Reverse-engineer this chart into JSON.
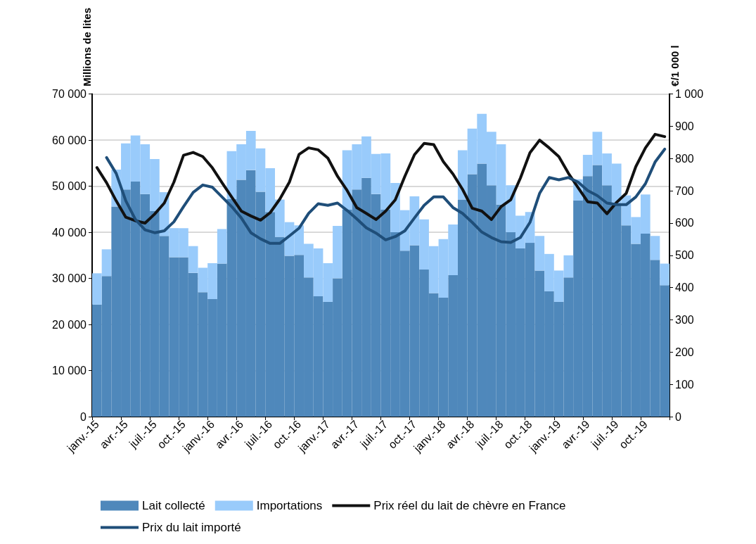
{
  "chart_data": {
    "type": "bar",
    "stacked": true,
    "categories": [
      "janv.-15",
      null,
      null,
      "avr.-15",
      null,
      null,
      "juil.-15",
      null,
      null,
      "oct.-15",
      null,
      null,
      "janv.-16",
      null,
      null,
      "avr.-16",
      null,
      null,
      "juil.-16",
      null,
      null,
      "oct.-16",
      null,
      null,
      "janv.-17",
      null,
      null,
      "avr.-17",
      null,
      null,
      "juil.-17",
      null,
      null,
      "oct.-17",
      null,
      null,
      "janv.-18",
      null,
      null,
      "avr.-18",
      null,
      null,
      "juil.-18",
      null,
      null,
      "oct.-18",
      null,
      null,
      "janv.-19",
      null,
      null,
      "avr.-19",
      null,
      null,
      "juil.-19",
      null,
      null,
      "oct.-19",
      null,
      null
    ],
    "ylabel": "Millions de lites",
    "y2label": "€/1 000 l",
    "ylim": [
      0,
      70000
    ],
    "yticks": [
      0,
      {
        "value": 10000,
        "label": "10 000"
      },
      {
        "value": 20000,
        "label": "20 000"
      },
      {
        "value": 30000,
        "label": "30 000"
      },
      {
        "value": 40000,
        "label": "40 000"
      },
      {
        "value": 50000,
        "label": "50 000"
      },
      {
        "value": 60000,
        "label": "60 000"
      },
      {
        "value": 70000,
        "label": "70 000"
      }
    ],
    "y2lim": [
      0,
      1000
    ],
    "y2ticks": [
      0,
      100,
      200,
      300,
      400,
      500,
      600,
      700,
      800,
      900,
      {
        "value": 1000,
        "label": "1 000"
      }
    ],
    "grid": "y",
    "legend": "bottom",
    "marker": "none",
    "line_style": "solid",
    "series": [
      {
        "name": "Lait collecté",
        "color": "#4f88bb",
        "values": [
          24300,
          30500,
          45600,
          49300,
          51000,
          48300,
          44600,
          39200,
          34600,
          34600,
          31200,
          27000,
          25500,
          33200,
          47200,
          51400,
          53500,
          48800,
          44400,
          39000,
          34900,
          35100,
          30200,
          26100,
          24900,
          30000,
          44900,
          49300,
          51800,
          48300,
          44900,
          40000,
          36000,
          37200,
          31900,
          26800,
          25800,
          30700,
          47100,
          52600,
          54900,
          50200,
          46000,
          40000,
          36500,
          37700,
          31700,
          27200,
          24900,
          30200,
          46900,
          52200,
          54600,
          50200,
          45900,
          41500,
          37500,
          39700,
          34000,
          28500
        ]
      },
      {
        "name": "Importations",
        "color": "#99cbfb",
        "values": [
          6800,
          5800,
          8000,
          10000,
          10000,
          10800,
          11300,
          9500,
          6300,
          6300,
          5800,
          5300,
          7800,
          7500,
          10400,
          7700,
          8500,
          9400,
          9500,
          8100,
          7300,
          6400,
          7300,
          10400,
          8400,
          11400,
          12900,
          9800,
          9000,
          8700,
          12200,
          10700,
          8800,
          10600,
          10900,
          10200,
          12700,
          11000,
          10700,
          9900,
          10800,
          11600,
          13100,
          10200,
          7100,
          6700,
          7500,
          8100,
          6800,
          4800,
          4600,
          4600,
          7200,
          6900,
          9000,
          6500,
          5800,
          8500,
          5200,
          4700
        ]
      },
      {
        "name": "Prix réel du lait de chèvre en France",
        "type": "line",
        "axis": "y2",
        "color": "#111111",
        "values": [
          772,
          725,
          669,
          618,
          607,
          600,
          628,
          662,
          727,
          810,
          819,
          806,
          771,
          725,
          681,
          637,
          622,
          609,
          632,
          674,
          727,
          813,
          833,
          827,
          801,
          745,
          701,
          648,
          630,
          611,
          637,
          672,
          745,
          812,
          847,
          843,
          790,
          752,
          704,
          646,
          637,
          611,
          651,
          672,
          739,
          818,
          857,
          833,
          806,
          754,
          710,
          666,
          662,
          629,
          664,
          692,
          775,
          833,
          875,
          868
        ]
      },
      {
        "name": "Prix du lait importé",
        "type": "line",
        "axis": "y2",
        "color": "#1f4e79",
        "values": [
          null,
          803,
          754,
          669,
          611,
          579,
          570,
          576,
          604,
          651,
          695,
          718,
          711,
          681,
          651,
          616,
          570,
          551,
          537,
          537,
          560,
          584,
          630,
          660,
          655,
          662,
          639,
          613,
          585,
          569,
          548,
          558,
          576,
          616,
          655,
          681,
          681,
          648,
          630,
          602,
          572,
          555,
          542,
          540,
          555,
          602,
          692,
          741,
          734,
          741,
          727,
          701,
          685,
          662,
          657,
          657,
          681,
          722,
          789,
          829
        ]
      }
    ]
  }
}
